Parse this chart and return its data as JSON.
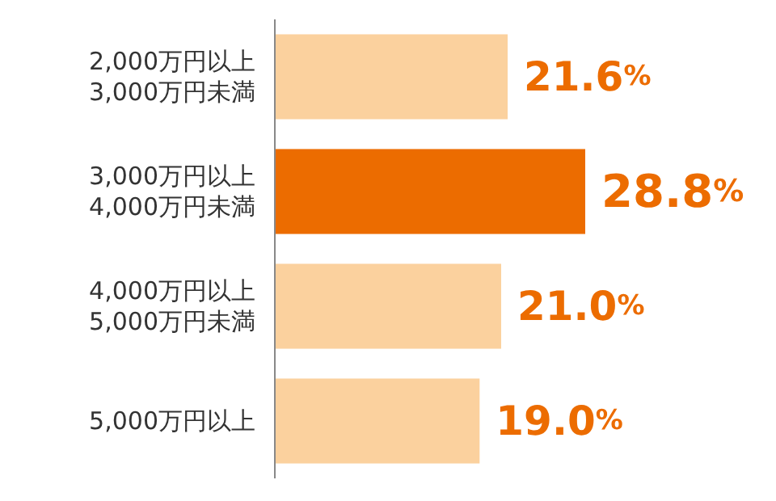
{
  "chart_data": {
    "type": "bar",
    "orientation": "horizontal",
    "categories": [
      "2,000万円以上\n3,000万円未満",
      "3,000万円以上\n4,000万円未満",
      "4,000万円以上\n5,000万円未満",
      "5,000万円以上"
    ],
    "values": [
      21.6,
      28.8,
      21.0,
      19.0
    ],
    "colors": [
      "#fbd19e",
      "#ec6c00",
      "#fbd19e",
      "#fbd19e"
    ],
    "value_labels": [
      "21.6%",
      "28.8%",
      "21.0%",
      "19.0%"
    ]
  }
}
